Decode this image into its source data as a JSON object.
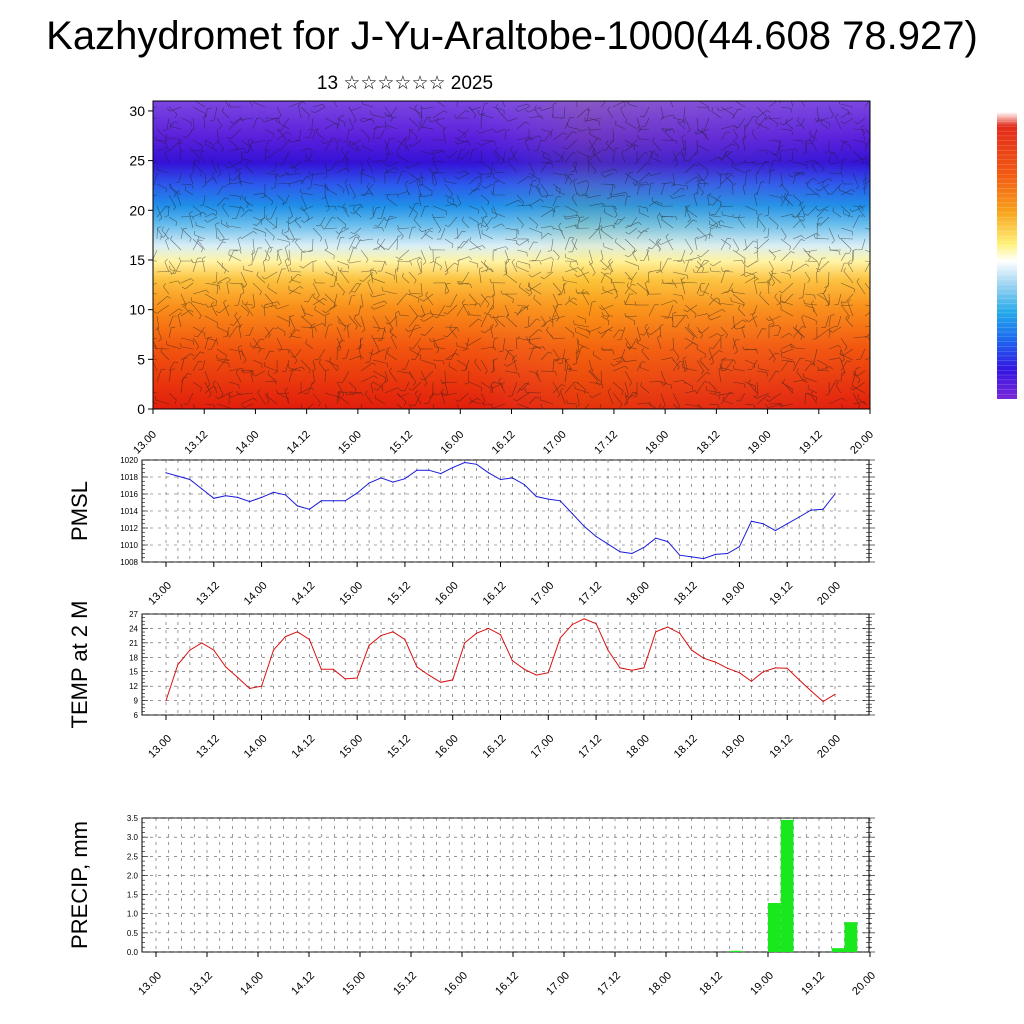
{
  "title": "Kazhydromet for J-Yu-Araltobe-1000(44.608 78.927)",
  "subtitle": "13 ☆☆☆☆☆☆ 2025",
  "chart_data": [
    {
      "type": "heatmap",
      "title": "",
      "y_ticks": [
        "0",
        "5",
        "10",
        "15",
        "20",
        "25",
        "30"
      ],
      "y_range": [
        0,
        31
      ],
      "x_ticks": [
        "13.00",
        "13.12",
        "14.00",
        "14.12",
        "15.00",
        "15.12",
        "16.00",
        "16.12",
        "17.00",
        "17.12",
        "18.00",
        "18.12",
        "19.00",
        "19.12",
        "20.00"
      ],
      "colorbar": "violet-blue-cyan-white-yellow-orange-red",
      "overlay": "wind barbs",
      "colors": [
        "#4a16d8",
        "#2f2ee8",
        "#1a78ee",
        "#b8dcf2",
        "#fff4a6",
        "#fcb02a",
        "#f47a12",
        "#e83010"
      ]
    },
    {
      "type": "line",
      "ylabel": "PMSL",
      "ylim": [
        1008,
        1020
      ],
      "y_ticks": [
        "1008",
        "1010",
        "1012",
        "1014",
        "1016",
        "1018",
        "1020"
      ],
      "x_ticks": [
        "13.00",
        "13.12",
        "14.00",
        "14.12",
        "15.00",
        "15.12",
        "16.00",
        "16.12",
        "17.00",
        "17.12",
        "18.00",
        "18.12",
        "19.00",
        "19.12",
        "20.00"
      ],
      "color": "#1a1ad8",
      "values": [
        1018.5,
        1018.1,
        1017.7,
        1016.6,
        1015.5,
        1015.8,
        1015.6,
        1015.1,
        1015.6,
        1016.2,
        1015.9,
        1014.6,
        1014.2,
        1015.2,
        1015.2,
        1015.2,
        1016.1,
        1017.3,
        1017.9,
        1017.4,
        1017.8,
        1018.8,
        1018.8,
        1018.4,
        1019.1,
        1019.7,
        1019.5,
        1018.5,
        1017.7,
        1017.9,
        1017.1,
        1015.7,
        1015.4,
        1015.2,
        1013.7,
        1012.2,
        1011.0,
        1010.1,
        1009.2,
        1009.0,
        1009.7,
        1010.8,
        1010.4,
        1008.8,
        1008.6,
        1008.4,
        1008.9,
        1009.0,
        1009.8,
        1012.8,
        1012.5,
        1011.7,
        1012.5,
        1013.3,
        1014.1,
        1014.2,
        1016.0
      ]
    },
    {
      "type": "line",
      "ylabel": "TEMP at 2 M",
      "ylim": [
        6,
        27
      ],
      "y_ticks": [
        "6",
        "9",
        "12",
        "15",
        "18",
        "21",
        "24",
        "27"
      ],
      "x_ticks": [
        "13.00",
        "13.12",
        "14.00",
        "14.12",
        "15.00",
        "15.12",
        "16.00",
        "16.12",
        "17.00",
        "17.12",
        "18.00",
        "18.12",
        "19.00",
        "19.12",
        "20.00"
      ],
      "color": "#d81010",
      "values": [
        9.0,
        16.5,
        19.5,
        21.0,
        19.5,
        16.0,
        13.8,
        11.5,
        12.0,
        19.5,
        22.3,
        23.3,
        21.7,
        15.5,
        15.5,
        13.5,
        13.7,
        20.5,
        22.5,
        23.3,
        21.7,
        16.0,
        14.3,
        12.8,
        13.3,
        21.0,
        23.0,
        24.0,
        22.7,
        17.3,
        15.5,
        14.3,
        14.8,
        22.0,
        24.8,
        26.0,
        25.0,
        19.5,
        15.8,
        15.3,
        15.8,
        23.3,
        24.3,
        23.0,
        19.5,
        17.8,
        17.0,
        15.7,
        14.8,
        13.0,
        15.0,
        15.8,
        15.7,
        13.3,
        11.0,
        8.8,
        10.3
      ]
    },
    {
      "type": "bar",
      "ylabel": "PRECIP, mm",
      "ylim": [
        0,
        3.5
      ],
      "y_ticks": [
        "0.0",
        "0.5",
        "1.0",
        "1.5",
        "2.0",
        "2.5",
        "3.0",
        "3.5"
      ],
      "x_ticks": [
        "13.00",
        "13.12",
        "14.00",
        "14.12",
        "15.00",
        "15.12",
        "16.00",
        "16.12",
        "17.00",
        "17.12",
        "18.00",
        "18.12",
        "19.00",
        "19.12",
        "20.00"
      ],
      "color": "#19e81c",
      "values": [
        0,
        0,
        0,
        0,
        0,
        0,
        0,
        0,
        0,
        0,
        0,
        0,
        0,
        0,
        0,
        0,
        0,
        0,
        0,
        0,
        0,
        0,
        0,
        0,
        0,
        0,
        0,
        0,
        0,
        0,
        0,
        0,
        0,
        0,
        0,
        0,
        0,
        0,
        0,
        0,
        0,
        0,
        0,
        0,
        0,
        0.03,
        0,
        0,
        1.28,
        3.45,
        0,
        0,
        0,
        0.1,
        0.78,
        0
      ]
    }
  ]
}
